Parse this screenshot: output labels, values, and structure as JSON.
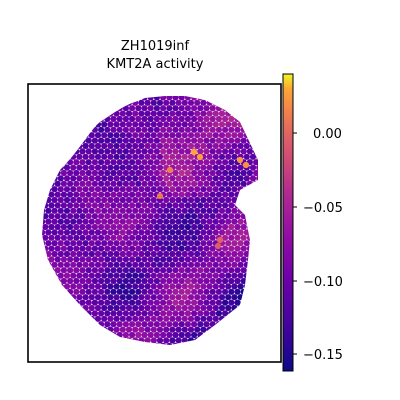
{
  "chart_data": {
    "type": "heatmap",
    "title_lines": [
      "ZH1019inf",
      "KMT2A activity"
    ],
    "xlabel": "",
    "ylabel": "",
    "grid": false,
    "colormap": "plasma",
    "colorbar": {
      "vmin": -0.16,
      "vmax": 0.04,
      "ticks": [
        0.0,
        -0.05,
        -0.1,
        -0.15
      ],
      "tick_labels": [
        "0.00",
        "−0.05",
        "−0.10",
        "−0.15"
      ]
    },
    "value_range_shown": [
      -0.16,
      0.03
    ]
  }
}
